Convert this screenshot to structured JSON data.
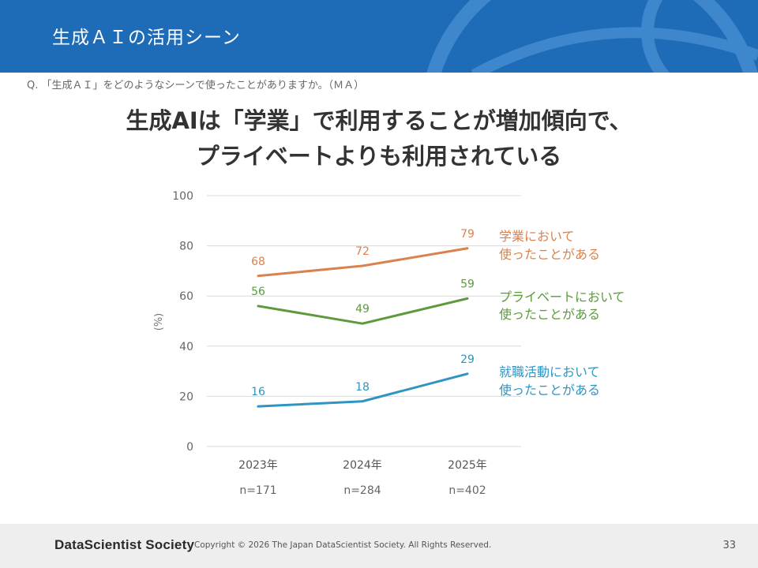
{
  "header": {
    "title": "生成ＡＩの活用シーン"
  },
  "question": "Q. 「生成ＡＩ」をどのようなシーンで使ったことがありますか。（ＭＡ）",
  "headline": {
    "line1": "生成AIは「学業」で利用することが増加傾向で、",
    "line2": "プライベートよりも利用されている"
  },
  "colors": {
    "header_bg": "#1e6bb8",
    "academic": "#d9824e",
    "private": "#5c9a3d",
    "job": "#2e95c2",
    "grid": "#d9d9d9"
  },
  "chart_data": {
    "type": "line",
    "categories": [
      "2023年",
      "2024年",
      "2025年"
    ],
    "sample_sizes": [
      "n=171",
      "n=284",
      "n=402"
    ],
    "ylabel": "(%)",
    "ylim": [
      0,
      100
    ],
    "yticks": [
      0,
      20,
      40,
      60,
      80,
      100
    ],
    "grid": true,
    "legend": "right (inline labels)",
    "series": [
      {
        "name": "学業において使ったことがある",
        "label_lines": [
          "学業において",
          "使ったことがある"
        ],
        "values": [
          68,
          72,
          79
        ],
        "color": "#d9824e"
      },
      {
        "name": "プライベートにおいて使ったことがある",
        "label_lines": [
          "プライベートにおいて",
          "使ったことがある"
        ],
        "values": [
          56,
          49,
          59
        ],
        "color": "#5c9a3d"
      },
      {
        "name": "就職活動において使ったことがある",
        "label_lines": [
          "就職活動において",
          "使ったことがある"
        ],
        "values": [
          16,
          18,
          29
        ],
        "color": "#2e95c2"
      }
    ]
  },
  "footer": {
    "logo": "DataScientist Society",
    "copyright": "Copyright © 2026  The Japan DataScientist Society. All Rights Reserved.",
    "page": "33"
  }
}
